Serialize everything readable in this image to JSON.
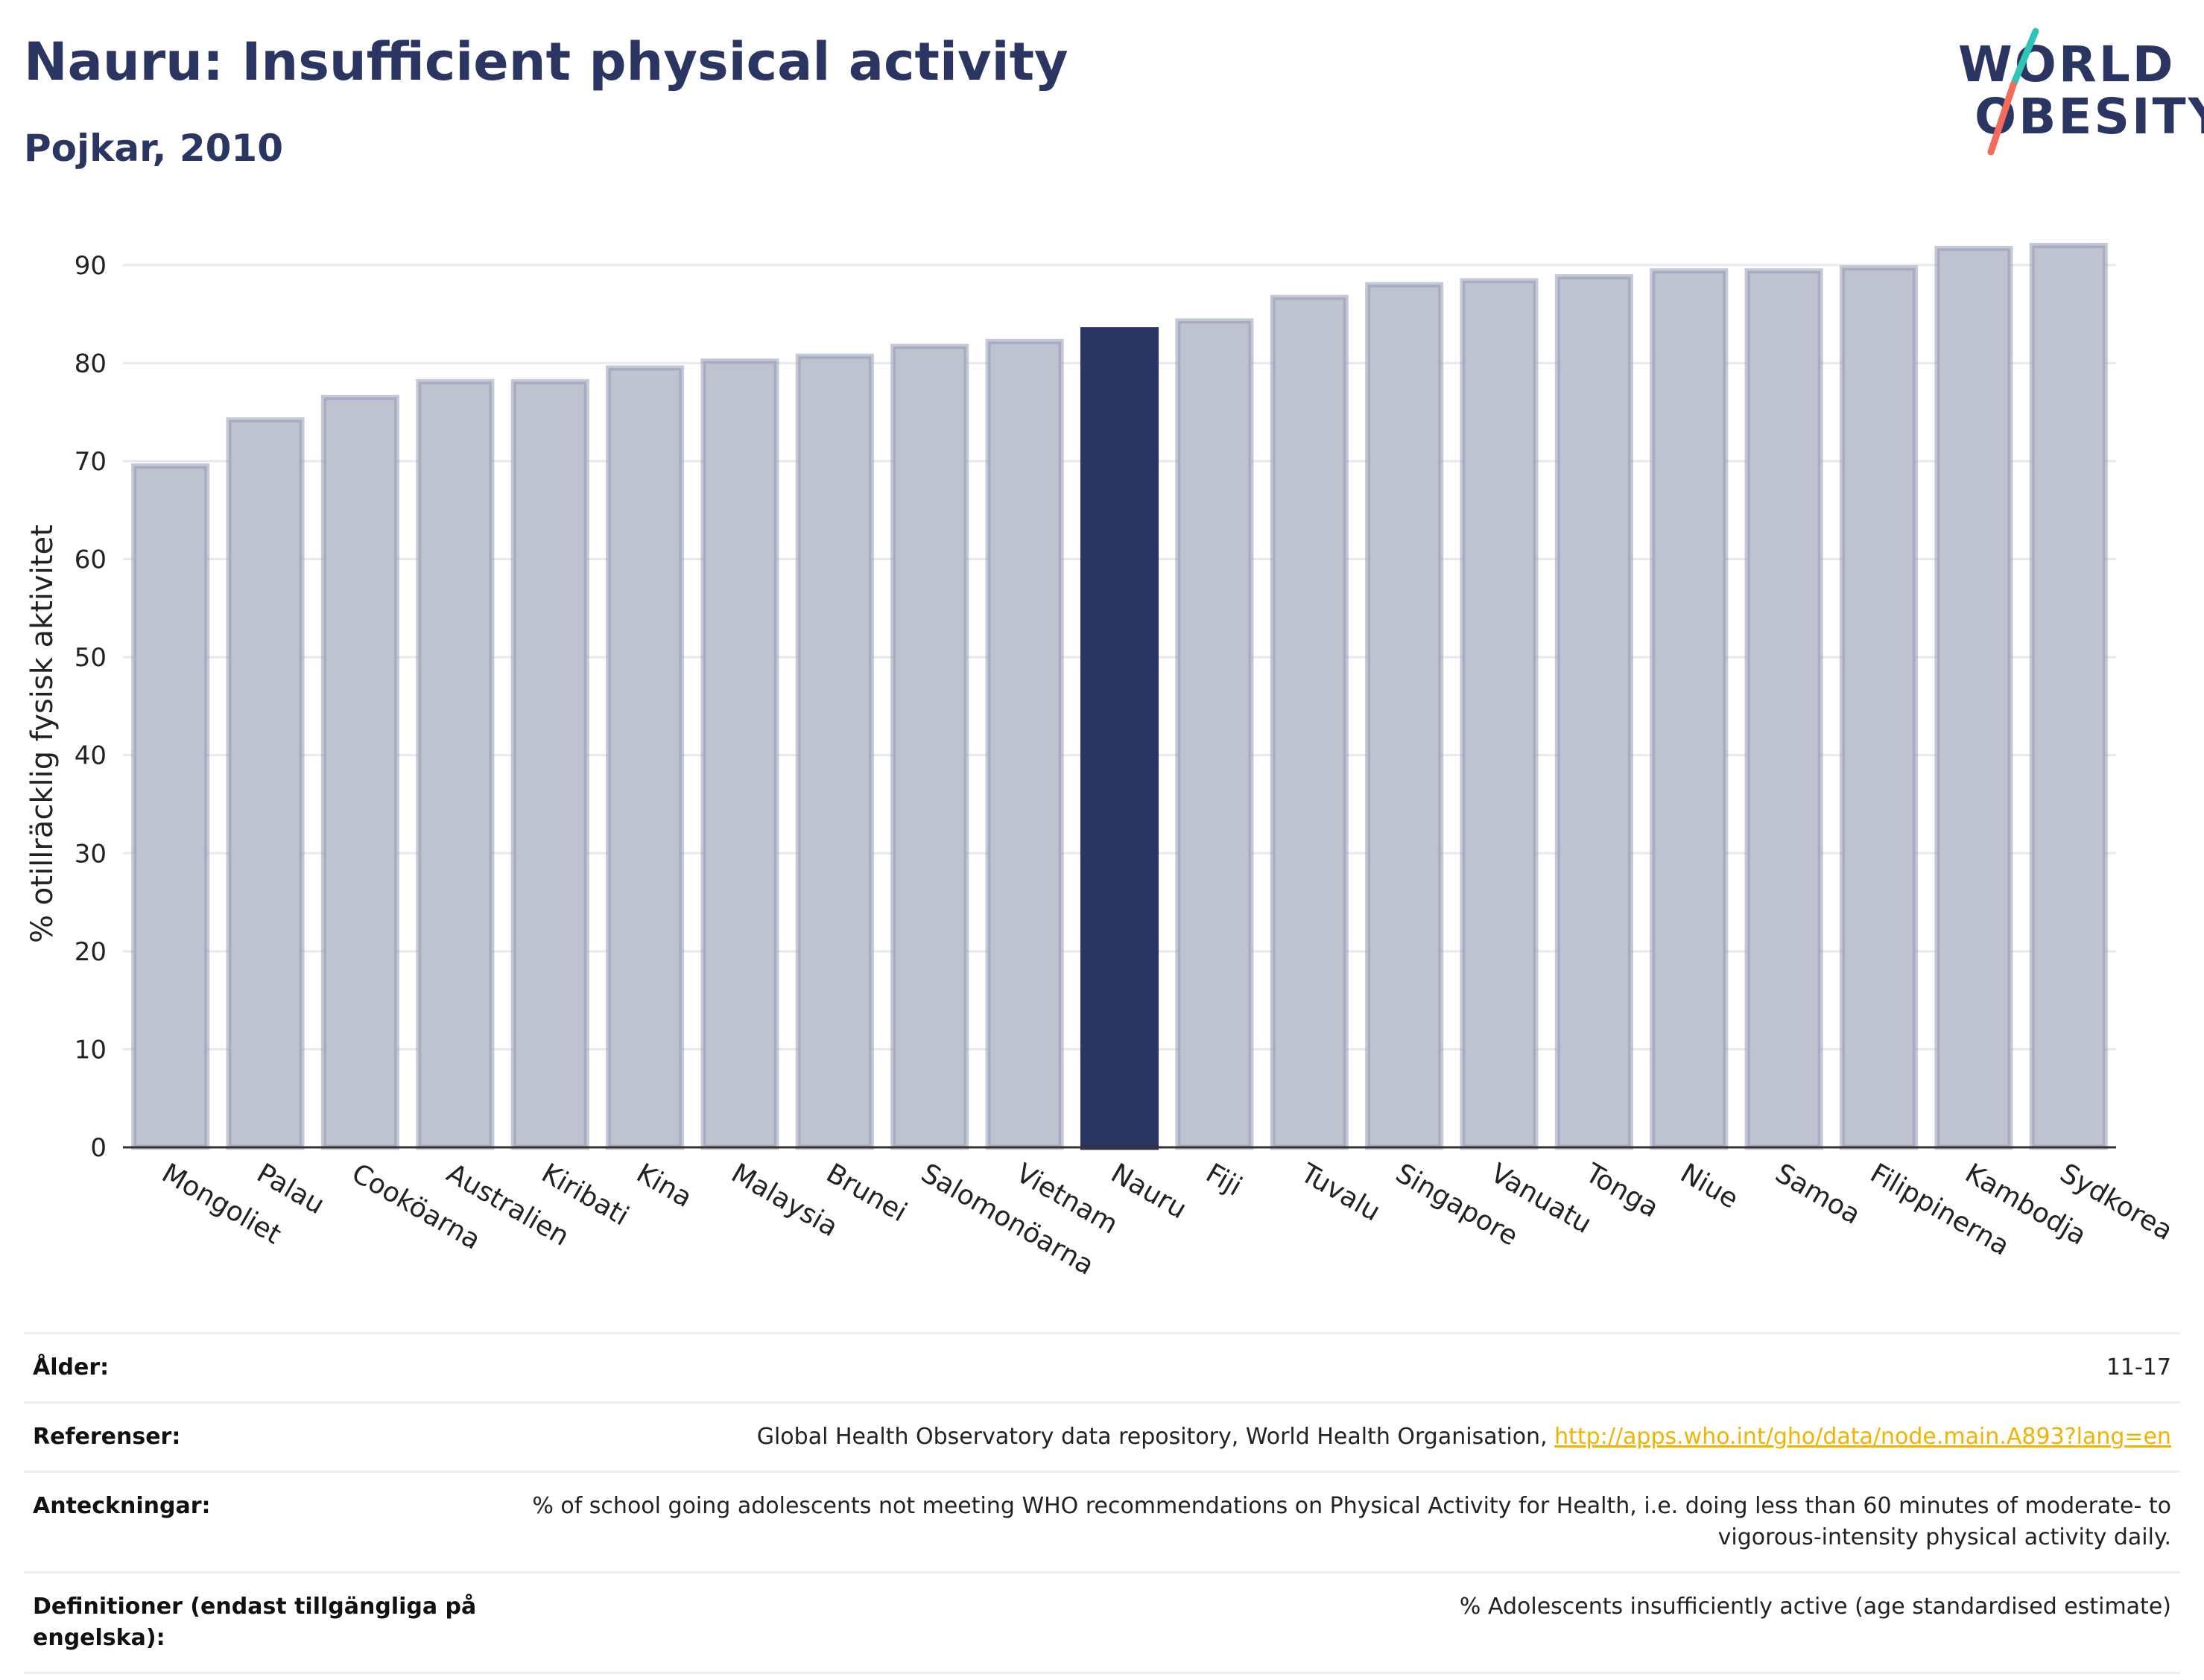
{
  "header": {
    "title": "Nauru: Insufficient physical activity",
    "subtitle": "Pojkar, 2010"
  },
  "logo": {
    "line1": "WORLD",
    "line2": "OBESITY",
    "colors": {
      "text": "#2b3561",
      "slash_top": "#2ec4b6",
      "slash_bottom": "#f26b5b"
    }
  },
  "chart_data": {
    "type": "bar",
    "ylabel": "% otillräcklig fysisk aktivitet",
    "ylim": [
      0,
      95
    ],
    "yticks": [
      0,
      10,
      20,
      30,
      40,
      50,
      60,
      70,
      80,
      90
    ],
    "grid": true,
    "highlight": "Nauru",
    "colors": {
      "bar": "#bfc2cf",
      "bar_border": "#959bb4",
      "highlight": "#2b3561"
    },
    "categories": [
      "Mongoliet",
      "Palau",
      "Cooköarna",
      "Australien",
      "Kiribati",
      "Kina",
      "Malaysia",
      "Brunei",
      "Salomonöarna",
      "Vietnam",
      "Nauru",
      "Fiji",
      "Tuvalu",
      "Singapore",
      "Vanuatu",
      "Tonga",
      "Niue",
      "Samoa",
      "Filippinerna",
      "Kambodja",
      "Sydkorea"
    ],
    "values": [
      69.5,
      74.2,
      76.5,
      78.1,
      78.1,
      79.5,
      80.2,
      80.7,
      81.7,
      82.2,
      83.4,
      84.3,
      86.7,
      88.0,
      88.4,
      88.8,
      89.4,
      89.4,
      89.7,
      91.7,
      92.0
    ]
  },
  "meta": {
    "age": {
      "label": "Ålder:",
      "value": "11-17"
    },
    "references": {
      "label": "Referenser:",
      "value": "Global Health Observatory data repository, World Health Organisation, ",
      "link": "http://apps.who.int/gho/data/node.main.A893?lang=en"
    },
    "notes": {
      "label": "Anteckningar:",
      "value": "% of school going adolescents not meeting WHO recommendations on Physical Activity for Health, i.e. doing less than 60 minutes of moderate- to vigorous-intensity physical activity daily."
    },
    "definitions": {
      "label": "Definitioner (endast tillgängliga på engelska):",
      "value": "% Adolescents insufficiently active (age standardised estimate)"
    }
  }
}
